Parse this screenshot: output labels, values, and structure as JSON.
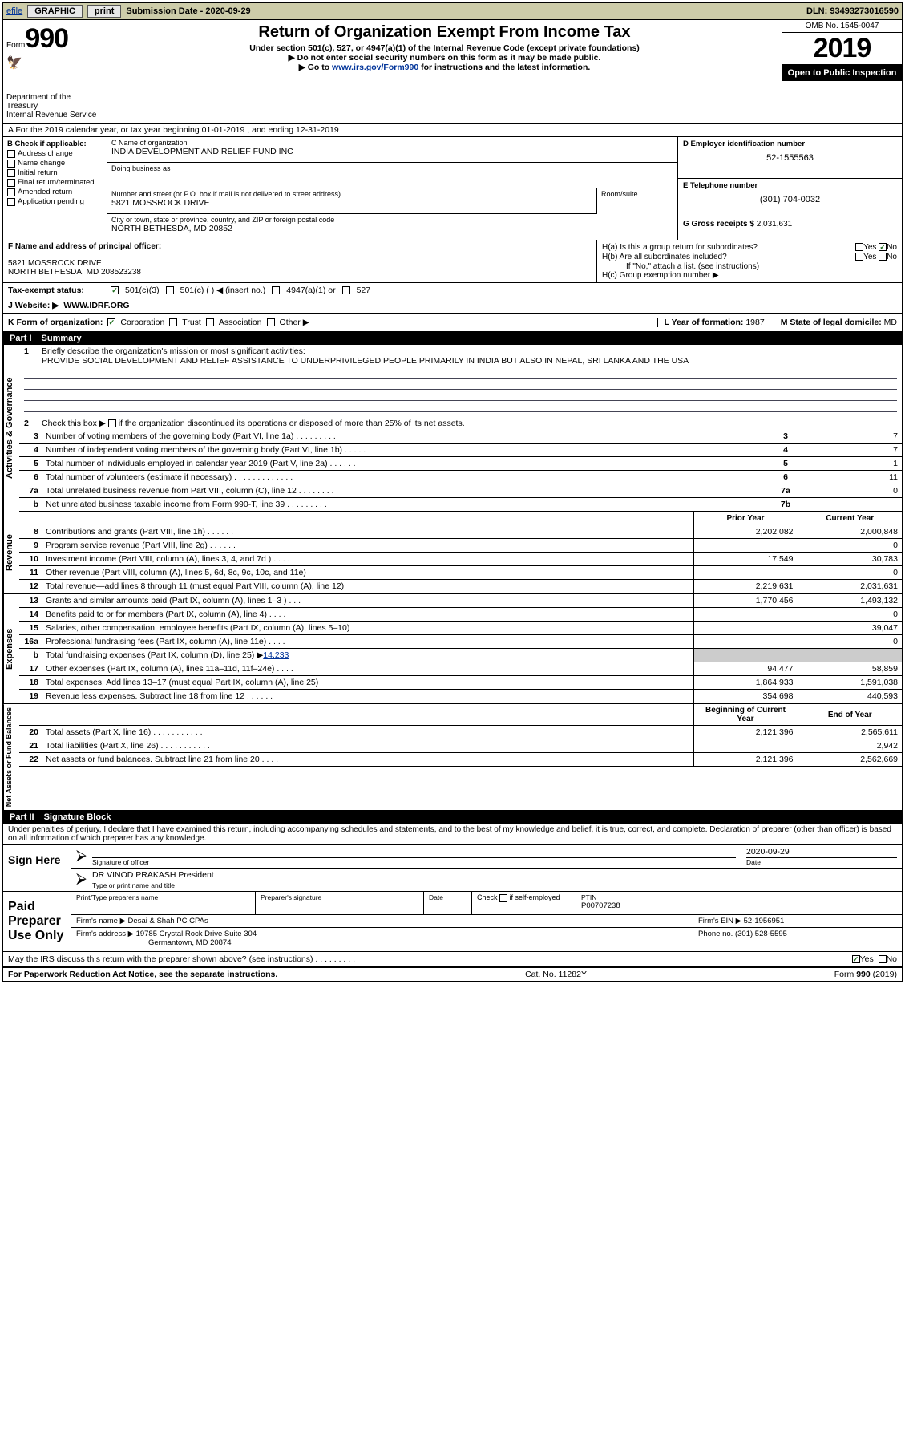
{
  "topbar": {
    "efile_link": "efile",
    "graphic_btn": "GRAPHIC",
    "print_btn": "print",
    "submission_label": "Submission Date - ",
    "submission_date": "2020-09-29",
    "dln_label": "DLN: ",
    "dln": "93493273016590"
  },
  "header": {
    "form_label": "Form",
    "form_number": "990",
    "dept": "Department of the Treasury",
    "irs": "Internal Revenue Service",
    "title": "Return of Organization Exempt From Income Tax",
    "subtitle": "Under section 501(c), 527, or 4947(a)(1) of the Internal Revenue Code (except private foundations)",
    "instr1": "▶ Do not enter social security numbers on this form as it may be made public.",
    "instr2_pre": "▶ Go to ",
    "instr2_link": "www.irs.gov/Form990",
    "instr2_post": " for instructions and the latest information.",
    "omb": "OMB No. 1545-0047",
    "year": "2019",
    "open": "Open to Public Inspection"
  },
  "row_a": "A For the 2019 calendar year, or tax year beginning 01-01-2019    , and ending 12-31-2019",
  "col_b": {
    "label": "B Check if applicable:",
    "items": [
      "Address change",
      "Name change",
      "Initial return",
      "Final return/terminated",
      "Amended return",
      "Application pending"
    ]
  },
  "col_c": {
    "name_lbl": "C Name of organization",
    "name_val": "INDIA DEVELOPMENT AND RELIEF FUND INC",
    "dba_lbl": "Doing business as",
    "dba_val": "",
    "street_lbl": "Number and street (or P.O. box if mail is not delivered to street address)",
    "street_val": "5821 MOSSROCK DRIVE",
    "room_lbl": "Room/suite",
    "city_lbl": "City or town, state or province, country, and ZIP or foreign postal code",
    "city_val": "NORTH BETHESDA, MD  20852"
  },
  "col_d": {
    "ein_lbl": "D Employer identification number",
    "ein_val": "52-1555563",
    "phone_lbl": "E Telephone number",
    "phone_val": "(301) 704-0032",
    "gross_lbl": "G Gross receipts $ ",
    "gross_val": "2,031,631"
  },
  "row_f": {
    "lbl": "F Name and address of principal officer:",
    "addr1": "5821 MOSSROCK DRIVE",
    "addr2": "NORTH BETHESDA, MD  208523238"
  },
  "row_h": {
    "ha": "H(a)  Is this a group return for subordinates?",
    "hb": "H(b)  Are all subordinates included?",
    "hb_note": "If \"No,\" attach a list. (see instructions)",
    "hc": "H(c)  Group exemption number ▶",
    "yes": "Yes",
    "no": "No"
  },
  "row_i": {
    "lbl": "Tax-exempt status:",
    "opt1": "501(c)(3)",
    "opt2": "501(c) (   ) ◀ (insert no.)",
    "opt3": "4947(a)(1) or",
    "opt4": "527"
  },
  "row_j": {
    "lbl": "J   Website: ▶",
    "val": "WWW.IDRF.ORG"
  },
  "row_k": {
    "lbl": "K Form of organization:",
    "opts": [
      "Corporation",
      "Trust",
      "Association",
      "Other ▶"
    ],
    "l_lbl": "L Year of formation: ",
    "l_val": "1987",
    "m_lbl": "M State of legal domicile: ",
    "m_val": "MD"
  },
  "part1": {
    "label": "Part I",
    "title": "Summary"
  },
  "summary": {
    "q1_lbl": "Briefly describe the organization's mission or most significant activities:",
    "q1_val": "PROVIDE SOCIAL DEVELOPMENT AND RELIEF ASSISTANCE TO UNDERPRIVILEGED PEOPLE PRIMARILY IN INDIA BUT ALSO IN NEPAL, SRI LANKA AND THE USA",
    "q2": "Check this box ▶       if the organization discontinued its operations or disposed of more than 25% of its net assets.",
    "lines_ag": [
      {
        "n": "3",
        "t": "Number of voting members of the governing body (Part VI, line 1a)   .    .    .    .    .    .    .    .    .",
        "b": "3",
        "v": "7"
      },
      {
        "n": "4",
        "t": "Number of independent voting members of the governing body (Part VI, line 1b)   .    .    .    .    .",
        "b": "4",
        "v": "7"
      },
      {
        "n": "5",
        "t": "Total number of individuals employed in calendar year 2019 (Part V, line 2a)   .    .    .    .    .    .",
        "b": "5",
        "v": "1"
      },
      {
        "n": "6",
        "t": "Total number of volunteers (estimate if necessary)    .    .    .    .    .    .    .    .    .    .    .    .    .",
        "b": "6",
        "v": "11"
      },
      {
        "n": "7a",
        "t": "Total unrelated business revenue from Part VIII, column (C), line 12   .    .    .    .    .    .    .    .",
        "b": "7a",
        "v": "0"
      },
      {
        "n": "b",
        "t": "Net unrelated business taxable income from Form 990-T, line 39    .    .    .    .    .    .    .    .    .",
        "b": "7b",
        "v": ""
      }
    ],
    "py_header": "Prior Year",
    "cy_header": "Current Year",
    "lines_rev": [
      {
        "n": "8",
        "t": "Contributions and grants (Part VIII, line 1h)    .    .    .    .    .    .",
        "py": "2,202,082",
        "cy": "2,000,848"
      },
      {
        "n": "9",
        "t": "Program service revenue (Part VIII, line 2g)    .    .    .    .    .    .",
        "py": "",
        "cy": "0"
      },
      {
        "n": "10",
        "t": "Investment income (Part VIII, column (A), lines 3, 4, and 7d )    .    .    .    .",
        "py": "17,549",
        "cy": "30,783"
      },
      {
        "n": "11",
        "t": "Other revenue (Part VIII, column (A), lines 5, 6d, 8c, 9c, 10c, and 11e)",
        "py": "",
        "cy": "0"
      },
      {
        "n": "12",
        "t": "Total revenue—add lines 8 through 11 (must equal Part VIII, column (A), line 12)",
        "py": "2,219,631",
        "cy": "2,031,631"
      }
    ],
    "lines_exp": [
      {
        "n": "13",
        "t": "Grants and similar amounts paid (Part IX, column (A), lines 1–3 )   .    .    .",
        "py": "1,770,456",
        "cy": "1,493,132"
      },
      {
        "n": "14",
        "t": "Benefits paid to or for members (Part IX, column (A), line 4)   .    .    .    .",
        "py": "",
        "cy": "0"
      },
      {
        "n": "15",
        "t": "Salaries, other compensation, employee benefits (Part IX, column (A), lines 5–10)",
        "py": "",
        "cy": "39,047"
      },
      {
        "n": "16a",
        "t": "Professional fundraising fees (Part IX, column (A), line 11e)   .    .    .    .",
        "py": "",
        "cy": "0"
      },
      {
        "n": "b",
        "t": "Total fundraising expenses (Part IX, column (D), line 25) ▶14,233",
        "py": "SHADE",
        "cy": "SHADE"
      },
      {
        "n": "17",
        "t": "Other expenses (Part IX, column (A), lines 11a–11d, 11f–24e)   .    .    .    .",
        "py": "94,477",
        "cy": "58,859"
      },
      {
        "n": "18",
        "t": "Total expenses. Add lines 13–17 (must equal Part IX, column (A), line 25)",
        "py": "1,864,933",
        "cy": "1,591,038"
      },
      {
        "n": "19",
        "t": "Revenue less expenses. Subtract line 18 from line 12 .    .    .    .    .    .",
        "py": "354,698",
        "cy": "440,593"
      }
    ],
    "na_header1": "Beginning of Current Year",
    "na_header2": "End of Year",
    "lines_na": [
      {
        "n": "20",
        "t": "Total assets (Part X, line 16)   .    .    .    .    .    .    .    .    .    .    .",
        "py": "2,121,396",
        "cy": "2,565,611"
      },
      {
        "n": "21",
        "t": "Total liabilities (Part X, line 26)  .    .    .    .    .    .    .    .    .    .    .",
        "py": "",
        "cy": "2,942"
      },
      {
        "n": "22",
        "t": "Net assets or fund balances. Subtract line 21 from line 20   .    .    .    .",
        "py": "2,121,396",
        "cy": "2,562,669"
      }
    ]
  },
  "vtabs": {
    "ag": "Activities & Governance",
    "rev": "Revenue",
    "exp": "Expenses",
    "na": "Net Assets or Fund Balances"
  },
  "part2": {
    "label": "Part II",
    "title": "Signature Block"
  },
  "sig": {
    "declaration": "Under penalties of perjury, I declare that I have examined this return, including accompanying schedules and statements, and to the best of my knowledge and belief, it is true, correct, and complete. Declaration of preparer (other than officer) is based on all information of which preparer has any knowledge.",
    "sign_here": "Sign Here",
    "sig_officer_lbl": "Signature of officer",
    "date_lbl": "Date",
    "date_val": "2020-09-29",
    "name_title_val": "DR VINOD PRAKASH  President",
    "name_title_lbl": "Type or print name and title",
    "paid": "Paid Preparer Use Only",
    "prep_name_lbl": "Print/Type preparer's name",
    "prep_sig_lbl": "Preparer's signature",
    "prep_date_lbl": "Date",
    "check_self": "Check        if self-employed",
    "ptin_lbl": "PTIN",
    "ptin_val": "P00707238",
    "firm_name_lbl": "Firm's name    ▶",
    "firm_name_val": "Desai & Shah PC CPAs",
    "firm_ein_lbl": "Firm's EIN ▶",
    "firm_ein_val": "52-1956951",
    "firm_addr_lbl": "Firm's address ▶",
    "firm_addr_val1": "19785 Crystal Rock Drive Suite 304",
    "firm_addr_val2": "Germantown, MD  20874",
    "firm_phone_lbl": "Phone no. ",
    "firm_phone_val": "(301) 528-5595"
  },
  "discuss": {
    "text": "May the IRS discuss this return with the preparer shown above? (see instructions)   .    .    .    .    .    .    .    .    .",
    "yes": "Yes",
    "no": "No"
  },
  "footer": {
    "left": "For Paperwork Reduction Act Notice, see the separate instructions.",
    "mid": "Cat. No. 11282Y",
    "right": "Form 990 (2019)"
  }
}
